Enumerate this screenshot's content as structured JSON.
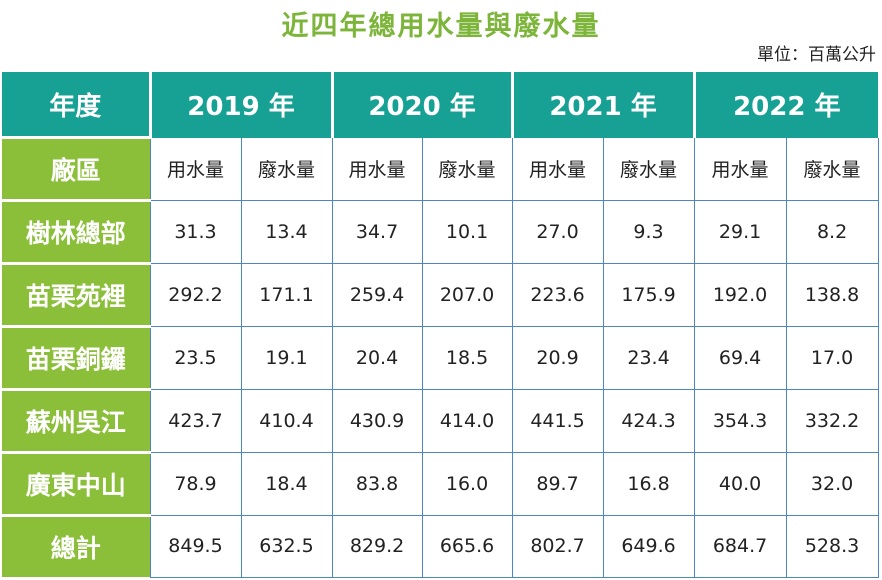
{
  "title": "近四年總用水量與廢水量",
  "unit": "單位：百萬公升",
  "colors": {
    "title": "#7cb53a",
    "teal": "#17a195",
    "green": "#8bbf3a"
  },
  "header": {
    "first": "年度",
    "years": [
      "2019 年",
      "2020 年",
      "2021 年",
      "2022 年"
    ]
  },
  "subheader": {
    "first": "廠區",
    "cols": [
      "用水量",
      "廢水量",
      "用水量",
      "廢水量",
      "用水量",
      "廢水量",
      "用水量",
      "廢水量"
    ]
  },
  "rows": [
    {
      "label": "樹林總部",
      "values": [
        "31.3",
        "13.4",
        "34.7",
        "10.1",
        "27.0",
        "9.3",
        "29.1",
        "8.2"
      ]
    },
    {
      "label": "苗栗苑裡",
      "values": [
        "292.2",
        "171.1",
        "259.4",
        "207.0",
        "223.6",
        "175.9",
        "192.0",
        "138.8"
      ]
    },
    {
      "label": "苗栗銅鑼",
      "values": [
        "23.5",
        "19.1",
        "20.4",
        "18.5",
        "20.9",
        "23.4",
        "69.4",
        "17.0"
      ]
    },
    {
      "label": "蘇州吳江",
      "values": [
        "423.7",
        "410.4",
        "430.9",
        "414.0",
        "441.5",
        "424.3",
        "354.3",
        "332.2"
      ]
    },
    {
      "label": "廣東中山",
      "values": [
        "78.9",
        "18.4",
        "83.8",
        "16.0",
        "89.7",
        "16.8",
        "40.0",
        "32.0"
      ]
    },
    {
      "label": "總計",
      "values": [
        "849.5",
        "632.5",
        "829.2",
        "665.6",
        "802.7",
        "649.6",
        "684.7",
        "528.3"
      ]
    }
  ]
}
